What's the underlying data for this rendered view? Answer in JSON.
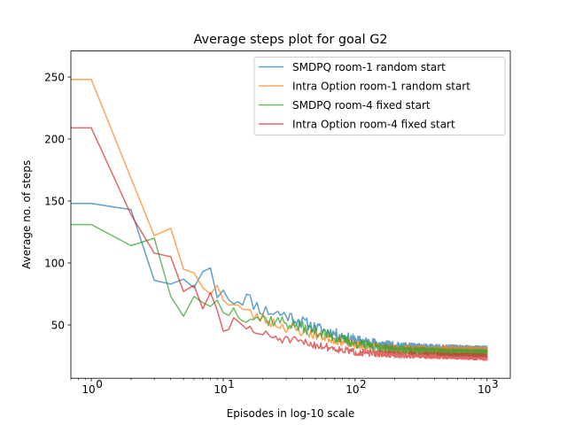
{
  "chart_data": {
    "type": "line",
    "title": "Average steps plot for goal G2",
    "xlabel": "Episodes in log-10 scale",
    "ylabel": "Average no. of steps",
    "xscale": "log",
    "xlim": [
      0.7,
      1500
    ],
    "ylim": [
      7,
      271
    ],
    "xticks": [
      {
        "value": 1,
        "base": "10",
        "exp": "0"
      },
      {
        "value": 10,
        "base": "10",
        "exp": "1"
      },
      {
        "value": 100,
        "base": "10",
        "exp": "2"
      },
      {
        "value": 1000,
        "base": "10",
        "exp": "3"
      }
    ],
    "yticks": [
      50,
      100,
      150,
      200,
      250
    ],
    "grid": false,
    "legend_position": "top-right",
    "series": [
      {
        "name": "SMDPQ room-1 random start",
        "color": "#1f77b4",
        "anchors": [
          [
            0,
            148
          ],
          [
            1,
            148
          ],
          [
            2,
            143
          ],
          [
            3,
            86
          ],
          [
            4,
            83
          ],
          [
            5,
            87
          ],
          [
            6,
            80
          ],
          [
            7,
            93
          ],
          [
            8,
            96
          ],
          [
            9,
            72
          ],
          [
            10,
            78
          ],
          [
            12,
            70
          ],
          [
            15,
            72
          ],
          [
            20,
            62
          ],
          [
            30,
            58
          ],
          [
            50,
            48
          ],
          [
            100,
            38
          ],
          [
            200,
            33
          ],
          [
            500,
            31
          ],
          [
            1000,
            30
          ]
        ],
        "noise": 7.0,
        "noise_min": 3.0,
        "seed": 11
      },
      {
        "name": "Intra Option room-1 random start",
        "color": "#ff7f0e",
        "anchors": [
          [
            0,
            248
          ],
          [
            1,
            248
          ],
          [
            3,
            122
          ],
          [
            4,
            128
          ],
          [
            5,
            95
          ],
          [
            6,
            92
          ],
          [
            7,
            80
          ],
          [
            8,
            75
          ],
          [
            9,
            82
          ],
          [
            10,
            70
          ],
          [
            12,
            68
          ],
          [
            15,
            60
          ],
          [
            20,
            55
          ],
          [
            30,
            48
          ],
          [
            50,
            42
          ],
          [
            100,
            34
          ],
          [
            200,
            31
          ],
          [
            500,
            30
          ],
          [
            1000,
            29
          ]
        ],
        "noise": 6.0,
        "noise_min": 3.0,
        "seed": 23
      },
      {
        "name": "SMDPQ room-4 fixed start",
        "color": "#2ca02c",
        "anchors": [
          [
            0,
            131
          ],
          [
            1,
            131
          ],
          [
            2,
            114
          ],
          [
            3,
            120
          ],
          [
            4,
            73
          ],
          [
            5,
            57
          ],
          [
            6,
            73
          ],
          [
            7,
            68
          ],
          [
            8,
            65
          ],
          [
            9,
            70
          ],
          [
            10,
            60
          ],
          [
            12,
            62
          ],
          [
            15,
            58
          ],
          [
            20,
            55
          ],
          [
            30,
            52
          ],
          [
            50,
            45
          ],
          [
            100,
            35
          ],
          [
            200,
            30
          ],
          [
            500,
            28
          ],
          [
            1000,
            27
          ]
        ],
        "noise": 7.0,
        "noise_min": 3.0,
        "seed": 37
      },
      {
        "name": "Intra Option room-4 fixed start",
        "color": "#d62728",
        "anchors": [
          [
            0,
            209
          ],
          [
            1,
            209
          ],
          [
            2,
            139
          ],
          [
            3,
            108
          ],
          [
            4,
            105
          ],
          [
            5,
            77
          ],
          [
            6,
            82
          ],
          [
            7,
            63
          ],
          [
            8,
            76
          ],
          [
            9,
            62
          ],
          [
            10,
            45
          ],
          [
            12,
            52
          ],
          [
            15,
            48
          ],
          [
            20,
            42
          ],
          [
            30,
            38
          ],
          [
            50,
            34
          ],
          [
            100,
            28
          ],
          [
            200,
            26
          ],
          [
            500,
            25
          ],
          [
            1000,
            24
          ]
        ],
        "noise": 5.0,
        "noise_min": 2.5,
        "seed": 51
      }
    ]
  }
}
